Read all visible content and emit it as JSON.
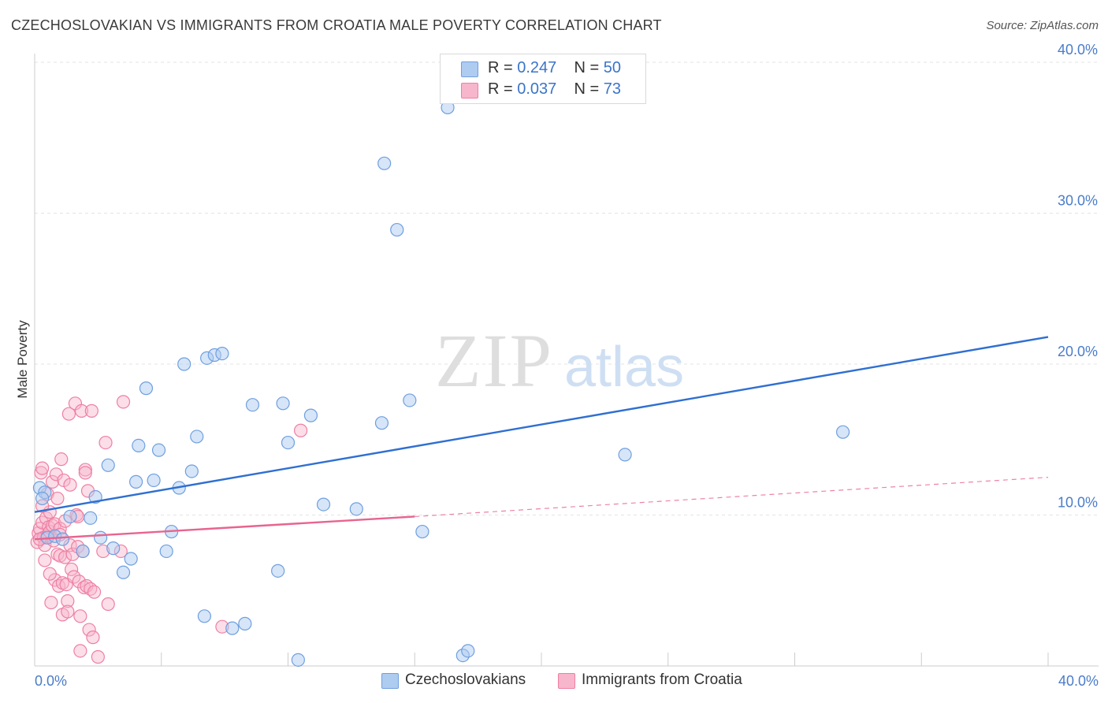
{
  "title": "CZECHOSLOVAKIAN VS IMMIGRANTS FROM CROATIA MALE POVERTY CORRELATION CHART",
  "source": "Source: ZipAtlas.com",
  "watermark": {
    "zip": "ZIP",
    "atlas": "atlas"
  },
  "legend_top": {
    "rows": [
      {
        "r_label": "R = ",
        "r_value": "0.247",
        "n_label": "N = ",
        "n_value": "50"
      },
      {
        "r_label": "R = ",
        "r_value": "0.037",
        "n_label": "N = ",
        "n_value": "73"
      }
    ]
  },
  "colors": {
    "blue_fill": "#aecbf0",
    "blue_stroke": "#6f9fe0",
    "blue_line": "#2f6fd1",
    "pink_fill": "#f7b6cb",
    "pink_stroke": "#ef7fa3",
    "pink_line": "#e8648f",
    "tick_text": "#4a7cc9",
    "grid": "#e3e3e3"
  },
  "chart_data": {
    "type": "scatter",
    "title": "CZECHOSLOVAKIAN VS IMMIGRANTS FROM CROATIA MALE POVERTY CORRELATION CHART",
    "xlabel": "",
    "ylabel": "Male Poverty",
    "xlim": [
      0,
      40
    ],
    "ylim": [
      0,
      40
    ],
    "x_tick_labels": [
      "0.0%",
      "40.0%"
    ],
    "y_ticks": [
      10,
      20,
      30,
      40
    ],
    "y_tick_labels": [
      "10.0%",
      "20.0%",
      "30.0%",
      "40.0%"
    ],
    "grid": true,
    "legend_position": "bottom",
    "series": [
      {
        "name": "Czechoslovakians",
        "r": 0.247,
        "n": 50,
        "trend": {
          "x": [
            0,
            40
          ],
          "y": [
            10.2,
            21.8
          ]
        },
        "points": [
          [
            0.2,
            11.8
          ],
          [
            0.4,
            11.5
          ],
          [
            0.5,
            8.5
          ],
          [
            0.8,
            8.6
          ],
          [
            1.1,
            8.4
          ],
          [
            1.4,
            9.9
          ],
          [
            1.9,
            7.6
          ],
          [
            2.2,
            9.8
          ],
          [
            2.4,
            11.2
          ],
          [
            2.6,
            8.5
          ],
          [
            2.9,
            13.3
          ],
          [
            3.1,
            7.8
          ],
          [
            3.5,
            6.2
          ],
          [
            3.8,
            7.1
          ],
          [
            4.0,
            12.2
          ],
          [
            4.1,
            14.6
          ],
          [
            4.4,
            18.4
          ],
          [
            4.7,
            12.3
          ],
          [
            4.9,
            14.3
          ],
          [
            5.2,
            7.6
          ],
          [
            5.4,
            8.9
          ],
          [
            5.7,
            11.8
          ],
          [
            5.9,
            20.0
          ],
          [
            6.2,
            12.9
          ],
          [
            6.4,
            15.2
          ],
          [
            6.8,
            20.4
          ],
          [
            7.1,
            20.6
          ],
          [
            7.4,
            20.7
          ],
          [
            6.7,
            3.3
          ],
          [
            7.8,
            2.5
          ],
          [
            8.3,
            2.8
          ],
          [
            8.6,
            17.3
          ],
          [
            9.6,
            6.3
          ],
          [
            9.8,
            17.4
          ],
          [
            10.0,
            14.8
          ],
          [
            10.9,
            16.6
          ],
          [
            10.4,
            0.4
          ],
          [
            11.4,
            10.7
          ],
          [
            12.7,
            10.4
          ],
          [
            13.7,
            16.1
          ],
          [
            13.8,
            33.3
          ],
          [
            14.3,
            28.9
          ],
          [
            14.8,
            17.6
          ],
          [
            15.3,
            8.9
          ],
          [
            16.3,
            37.0
          ],
          [
            16.9,
            0.7
          ],
          [
            17.1,
            1.0
          ],
          [
            23.3,
            14.0
          ],
          [
            31.9,
            15.5
          ],
          [
            0.3,
            11.1
          ]
        ]
      },
      {
        "name": "Immigrants from Croatia",
        "r": 0.037,
        "n": 73,
        "trend": {
          "x": [
            0,
            15
          ],
          "y": [
            8.4,
            9.9
          ]
        },
        "trend_extended": {
          "x": [
            15,
            40
          ],
          "y": [
            9.9,
            12.5
          ]
        },
        "points": [
          [
            0.1,
            8.2
          ],
          [
            0.15,
            8.8
          ],
          [
            0.2,
            9.1
          ],
          [
            0.25,
            12.8
          ],
          [
            0.3,
            13.1
          ],
          [
            0.3,
            9.5
          ],
          [
            0.35,
            8.5
          ],
          [
            0.4,
            8.0
          ],
          [
            0.45,
            9.8
          ],
          [
            0.5,
            8.6
          ],
          [
            0.5,
            11.4
          ],
          [
            0.55,
            9.2
          ],
          [
            0.6,
            8.9
          ],
          [
            0.6,
            10.2
          ],
          [
            0.65,
            4.2
          ],
          [
            0.7,
            9.3
          ],
          [
            0.7,
            12.2
          ],
          [
            0.75,
            8.3
          ],
          [
            0.8,
            5.7
          ],
          [
            0.8,
            9.4
          ],
          [
            0.85,
            12.7
          ],
          [
            0.9,
            11.1
          ],
          [
            0.9,
            7.4
          ],
          [
            0.95,
            5.3
          ],
          [
            1.0,
            9.1
          ],
          [
            1.0,
            7.3
          ],
          [
            1.05,
            13.7
          ],
          [
            1.1,
            5.5
          ],
          [
            1.1,
            3.4
          ],
          [
            1.15,
            12.3
          ],
          [
            1.2,
            7.2
          ],
          [
            1.25,
            5.4
          ],
          [
            1.3,
            4.3
          ],
          [
            1.3,
            3.6
          ],
          [
            1.35,
            16.7
          ],
          [
            1.4,
            12.0
          ],
          [
            1.4,
            8.0
          ],
          [
            1.45,
            6.4
          ],
          [
            1.5,
            7.4
          ],
          [
            1.55,
            5.9
          ],
          [
            1.6,
            17.4
          ],
          [
            1.65,
            10.0
          ],
          [
            1.7,
            9.9
          ],
          [
            1.7,
            7.9
          ],
          [
            1.75,
            5.6
          ],
          [
            1.8,
            1.0
          ],
          [
            1.8,
            3.3
          ],
          [
            1.85,
            16.9
          ],
          [
            1.9,
            7.6
          ],
          [
            1.95,
            5.2
          ],
          [
            2.0,
            13.0
          ],
          [
            2.0,
            12.8
          ],
          [
            2.05,
            5.3
          ],
          [
            2.1,
            11.6
          ],
          [
            2.15,
            2.4
          ],
          [
            2.2,
            5.1
          ],
          [
            2.25,
            16.9
          ],
          [
            2.3,
            1.9
          ],
          [
            2.35,
            4.9
          ],
          [
            2.5,
            0.6
          ],
          [
            2.7,
            7.6
          ],
          [
            2.8,
            14.8
          ],
          [
            2.9,
            4.1
          ],
          [
            3.4,
            7.6
          ],
          [
            3.5,
            17.5
          ],
          [
            7.4,
            2.6
          ],
          [
            10.5,
            15.6
          ],
          [
            0.2,
            8.4
          ],
          [
            0.4,
            7.0
          ],
          [
            0.6,
            6.1
          ],
          [
            1.0,
            8.7
          ],
          [
            1.2,
            9.6
          ],
          [
            0.3,
            10.6
          ]
        ]
      }
    ]
  }
}
